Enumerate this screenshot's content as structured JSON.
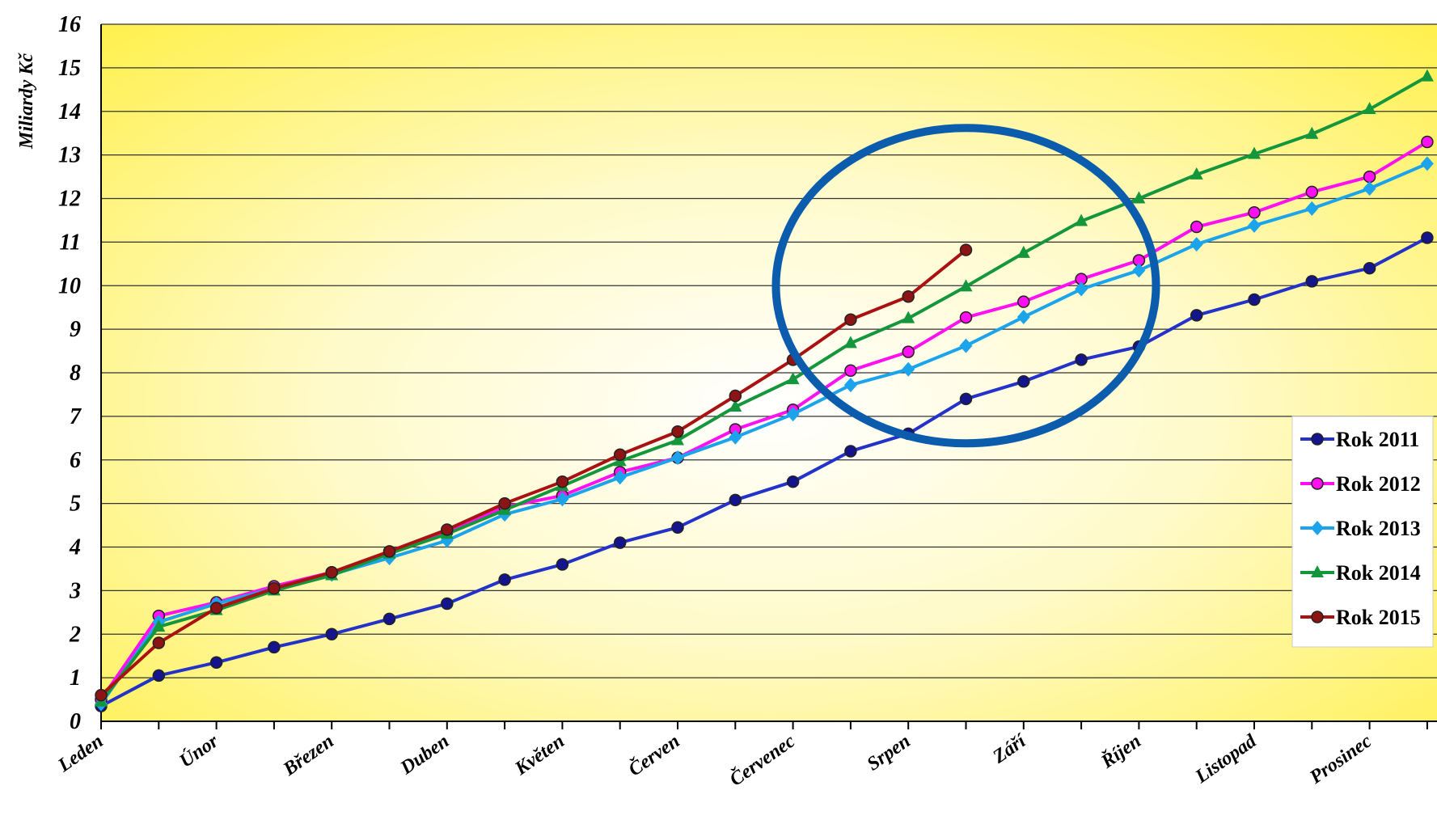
{
  "chart_data": {
    "type": "line",
    "ylabel": "Miliardy Kč",
    "ylim": [
      0,
      16
    ],
    "y_ticks": [
      0,
      1,
      2,
      3,
      4,
      5,
      6,
      7,
      8,
      9,
      10,
      11,
      12,
      13,
      14,
      15,
      16
    ],
    "month_labels": [
      "Leden",
      "Únor",
      "Březen",
      "Duben",
      "Květen",
      "Červen",
      "Červenec",
      "Srpen",
      "Září",
      "Říjen",
      "Listopad",
      "Prosinec"
    ],
    "x_count": 24,
    "grid": true,
    "legend_position": "right",
    "series": [
      {
        "name": "Rok 2011",
        "color": "#2332c8",
        "marker": "circle",
        "marker_fill": "#14148c",
        "values": [
          0.35,
          1.05,
          1.35,
          1.7,
          2.0,
          2.35,
          2.7,
          3.25,
          3.6,
          4.1,
          4.45,
          5.08,
          5.5,
          6.2,
          6.6,
          7.4,
          7.8,
          8.3,
          8.6,
          9.32,
          9.68,
          10.1,
          10.4,
          11.1
        ]
      },
      {
        "name": "Rok 2012",
        "color": "#ff10f0",
        "marker": "circle",
        "marker_fill": "#ff10f0",
        "values": [
          0.5,
          2.42,
          2.73,
          3.1,
          3.42,
          3.85,
          4.35,
          4.92,
          5.18,
          5.72,
          6.05,
          6.7,
          7.15,
          8.05,
          8.48,
          9.27,
          9.63,
          10.15,
          10.58,
          11.35,
          11.68,
          12.15,
          12.5,
          13.3
        ]
      },
      {
        "name": "Rok 2013",
        "color": "#1ba4ec",
        "marker": "diamond",
        "marker_fill": "#1ba4ec",
        "values": [
          0.4,
          2.28,
          2.7,
          3.05,
          3.37,
          3.75,
          4.15,
          4.75,
          5.1,
          5.6,
          6.05,
          6.52,
          7.05,
          7.72,
          8.08,
          8.62,
          9.28,
          9.92,
          10.35,
          10.95,
          11.38,
          11.77,
          12.23,
          12.8
        ]
      },
      {
        "name": "Rok 2014",
        "color": "#14963c",
        "marker": "triangle",
        "marker_fill": "#14963c",
        "values": [
          0.45,
          2.17,
          2.55,
          3.0,
          3.35,
          3.85,
          4.3,
          4.85,
          5.4,
          5.97,
          6.45,
          7.22,
          7.85,
          8.68,
          9.25,
          9.98,
          10.75,
          11.48,
          12.0,
          12.55,
          13.02,
          13.48,
          14.05,
          14.8
        ]
      },
      {
        "name": "Rok 2015",
        "color": "#aa1212",
        "marker": "circle",
        "marker_fill": "#8c1414",
        "values": [
          0.6,
          1.8,
          2.6,
          3.05,
          3.42,
          3.9,
          4.4,
          5.0,
          5.5,
          6.12,
          6.65,
          7.47,
          8.3,
          9.22,
          9.75,
          10.82
        ]
      }
    ],
    "highlight": {
      "shape": "ellipse",
      "color": "#0b5cad",
      "center_x_index": 15,
      "center_y_value": 10.0
    }
  }
}
